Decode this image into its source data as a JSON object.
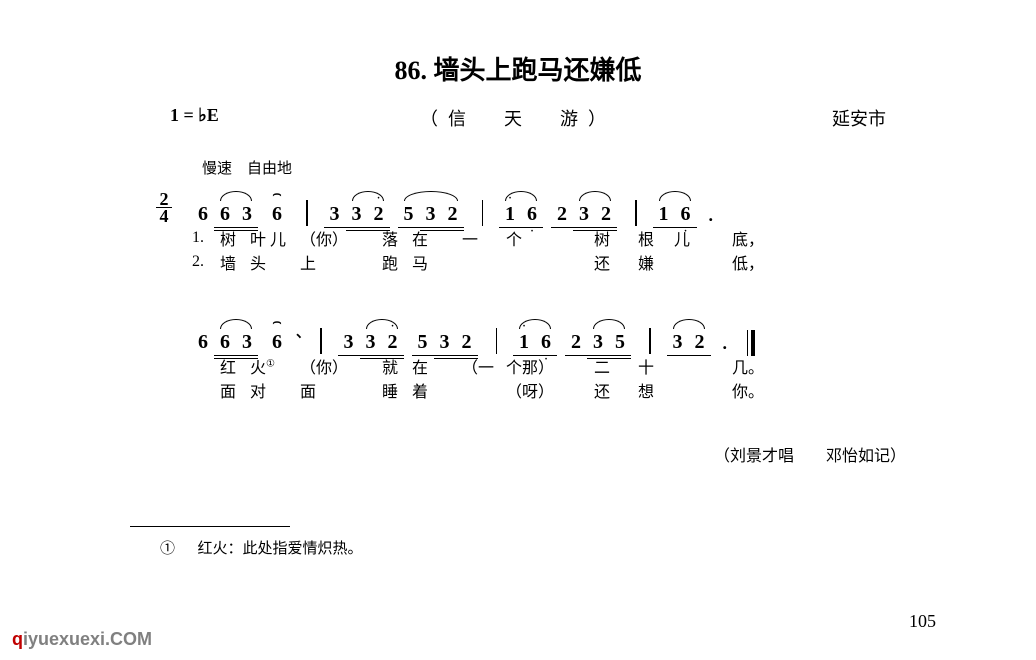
{
  "title": "86. 墙头上跑马还嫌低",
  "subtitle_center": "（信　天　游）",
  "key_signature": "1 = ♭E",
  "region": "延安市",
  "tempo_marking": "慢速　自由地",
  "time_signature": {
    "num": "2",
    "den": "4"
  },
  "line1": {
    "groups": [
      {
        "notes": [
          "6",
          "6",
          "3"
        ],
        "ties": [
          [
            1,
            2
          ]
        ],
        "beam": [
          1,
          2
        ],
        "underline2": [
          1,
          2
        ]
      },
      {
        "notes": [
          "6"
        ],
        "fermata": true
      },
      {
        "bar": true
      },
      {
        "notes": [
          "3",
          "3",
          "2"
        ],
        "ties": [
          [
            1,
            2
          ]
        ],
        "beam": [
          0,
          2
        ],
        "underline2": [
          1,
          2
        ],
        "dot_above": [
          2
        ]
      },
      {
        "notes": [
          "5",
          "3",
          "2"
        ],
        "ties": [
          [
            0,
            2
          ]
        ],
        "beam": [
          0,
          2
        ],
        "underline2": [
          1,
          2
        ]
      },
      {
        "bar": true
      },
      {
        "notes": [
          "1",
          "6"
        ],
        "ties": [
          [
            0,
            1
          ]
        ],
        "beam": [
          0,
          1
        ],
        "dot_below": [
          1
        ],
        "dot_above": [
          0
        ]
      },
      {
        "notes": [
          "2",
          "3",
          "2"
        ],
        "ties": [
          [
            1,
            2
          ]
        ],
        "beam": [
          0,
          2
        ],
        "underline2": [
          1,
          2
        ]
      },
      {
        "bar": true
      },
      {
        "notes": [
          "1",
          "6"
        ],
        "ties": [
          [
            0,
            1
          ]
        ],
        "beam": [
          0,
          1
        ],
        "dot_below": [
          1
        ]
      },
      {
        "aug_dot": "."
      }
    ],
    "lyrics1": [
      "1.",
      "树",
      "叶 儿",
      "（你）",
      "",
      "落",
      "在",
      "",
      "一",
      "个",
      "",
      "树",
      "",
      "根",
      "儿",
      "",
      "底，",
      ""
    ],
    "lyrics2": [
      "2.",
      "墙",
      "头",
      "上",
      "",
      "跑",
      "马",
      "",
      "",
      "",
      "",
      "还",
      "",
      "嫌",
      "",
      "",
      "低，",
      ""
    ]
  },
  "line2": {
    "groups": [
      {
        "notes": [
          "6",
          "6",
          "3"
        ],
        "ties": [
          [
            1,
            2
          ]
        ],
        "beam": [
          1,
          2
        ],
        "underline2": [
          1,
          2
        ]
      },
      {
        "notes": [
          "6"
        ],
        "fermata": true,
        "breath": true
      },
      {
        "bar": true
      },
      {
        "notes": [
          "3",
          "3",
          "2"
        ],
        "ties": [
          [
            1,
            2
          ]
        ],
        "beam": [
          0,
          2
        ],
        "underline2": [
          1,
          2
        ],
        "dot_above": [
          2
        ]
      },
      {
        "notes": [
          "5",
          "3",
          "2"
        ],
        "beam": [
          0,
          2
        ],
        "underline2": [
          1,
          2
        ]
      },
      {
        "bar": true
      },
      {
        "notes": [
          "1",
          "6"
        ],
        "ties": [
          [
            0,
            1
          ]
        ],
        "beam": [
          0,
          1
        ],
        "dot_below": [
          1
        ],
        "dot_above": [
          0
        ]
      },
      {
        "notes": [
          "2",
          "3",
          "5"
        ],
        "ties": [
          [
            1,
            2
          ]
        ],
        "beam": [
          0,
          2
        ],
        "underline2": [
          1,
          2
        ]
      },
      {
        "bar": true
      },
      {
        "notes": [
          "3",
          "2"
        ],
        "ties": [
          [
            0,
            1
          ]
        ],
        "beam": [
          0,
          1
        ]
      },
      {
        "aug_dot": "."
      },
      {
        "end": true
      }
    ],
    "lyrics1": [
      "",
      "红",
      "火",
      "（你）",
      "",
      "就",
      "在",
      "",
      "（一",
      "个那）",
      "",
      "二",
      "",
      "十",
      "",
      "",
      "几。",
      ""
    ],
    "lyrics2": [
      "",
      "面",
      "对",
      "面",
      "",
      "睡",
      "着",
      "",
      "",
      "（呀）",
      "",
      "还",
      "",
      "想",
      "",
      "",
      "你。",
      ""
    ]
  },
  "lyric_widths": [
    28,
    30,
    50,
    54,
    28,
    30,
    36,
    14,
    44,
    60,
    28,
    30,
    14,
    36,
    30,
    28,
    60,
    20
  ],
  "credits": "（刘景才唱　　邓怡如记）",
  "footnote_marker": "①",
  "footnote_text": "红火：此处指爱情炽热。",
  "page_number": "105",
  "watermark": {
    "q": "q",
    "rest": "iyuexuexi.COM"
  },
  "colors": {
    "text": "#000000",
    "bg": "#ffffff",
    "wm_q": "#c00000",
    "wm_rest": "#808080"
  }
}
